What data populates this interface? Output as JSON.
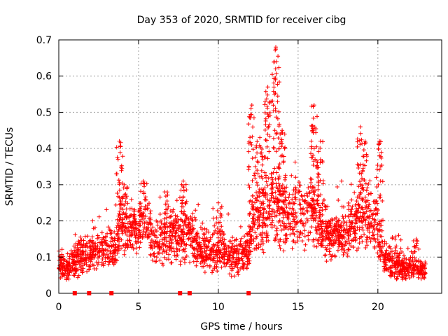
{
  "chart_data": {
    "type": "scatter",
    "title": "Day 353 of 2020, SRMTID for receiver cibg",
    "xlabel": "GPS time / hours",
    "ylabel": "SRMTID / TECUs",
    "xlim": [
      0,
      24
    ],
    "ylim": [
      0,
      0.7
    ],
    "xticks": [
      0,
      5,
      10,
      15,
      20
    ],
    "yticks": [
      0,
      0.1,
      0.2,
      0.3,
      0.4,
      0.5,
      0.6,
      0.7
    ],
    "grid": true,
    "marker": "plus",
    "color": "#ff0000",
    "gap_markers_x": [
      1.0,
      1.9,
      3.3,
      7.6,
      8.2,
      11.9
    ],
    "envelope": [
      {
        "x": 0.0,
        "base": 0.08,
        "spread": 0.03
      },
      {
        "x": 0.5,
        "base": 0.07,
        "spread": 0.03
      },
      {
        "x": 1.0,
        "base": 0.09,
        "spread": 0.04
      },
      {
        "x": 1.5,
        "base": 0.1,
        "spread": 0.04
      },
      {
        "x": 2.0,
        "base": 0.11,
        "spread": 0.04
      },
      {
        "x": 2.5,
        "base": 0.12,
        "spread": 0.04
      },
      {
        "x": 3.0,
        "base": 0.13,
        "spread": 0.04
      },
      {
        "x": 3.5,
        "base": 0.12,
        "spread": 0.04
      },
      {
        "x": 3.9,
        "base": 0.2,
        "spread": 0.08
      },
      {
        "x": 4.3,
        "base": 0.18,
        "spread": 0.06
      },
      {
        "x": 5.0,
        "base": 0.18,
        "spread": 0.05
      },
      {
        "x": 5.5,
        "base": 0.2,
        "spread": 0.06
      },
      {
        "x": 6.0,
        "base": 0.14,
        "spread": 0.05
      },
      {
        "x": 7.0,
        "base": 0.15,
        "spread": 0.06
      },
      {
        "x": 8.0,
        "base": 0.17,
        "spread": 0.07
      },
      {
        "x": 9.0,
        "base": 0.12,
        "spread": 0.05
      },
      {
        "x": 10.0,
        "base": 0.12,
        "spread": 0.05
      },
      {
        "x": 11.0,
        "base": 0.1,
        "spread": 0.04
      },
      {
        "x": 11.7,
        "base": 0.1,
        "spread": 0.04
      },
      {
        "x": 12.2,
        "base": 0.2,
        "spread": 0.08
      },
      {
        "x": 13.0,
        "base": 0.22,
        "spread": 0.08
      },
      {
        "x": 13.7,
        "base": 0.25,
        "spread": 0.1
      },
      {
        "x": 14.5,
        "base": 0.2,
        "spread": 0.07
      },
      {
        "x": 15.0,
        "base": 0.22,
        "spread": 0.07
      },
      {
        "x": 16.0,
        "base": 0.22,
        "spread": 0.08
      },
      {
        "x": 17.0,
        "base": 0.15,
        "spread": 0.05
      },
      {
        "x": 18.0,
        "base": 0.17,
        "spread": 0.06
      },
      {
        "x": 19.0,
        "base": 0.2,
        "spread": 0.07
      },
      {
        "x": 20.0,
        "base": 0.18,
        "spread": 0.06
      },
      {
        "x": 20.4,
        "base": 0.1,
        "spread": 0.04
      },
      {
        "x": 21.0,
        "base": 0.08,
        "spread": 0.03
      },
      {
        "x": 22.0,
        "base": 0.07,
        "spread": 0.03
      },
      {
        "x": 23.0,
        "base": 0.06,
        "spread": 0.02
      }
    ],
    "peaks": [
      {
        "x": 3.8,
        "value": 0.42
      },
      {
        "x": 4.1,
        "value": 0.3
      },
      {
        "x": 5.3,
        "value": 0.31
      },
      {
        "x": 6.8,
        "value": 0.28
      },
      {
        "x": 7.8,
        "value": 0.31
      },
      {
        "x": 10.0,
        "value": 0.25
      },
      {
        "x": 12.1,
        "value": 0.52
      },
      {
        "x": 12.6,
        "value": 0.43
      },
      {
        "x": 13.1,
        "value": 0.57
      },
      {
        "x": 13.6,
        "value": 0.68
      },
      {
        "x": 14.0,
        "value": 0.45
      },
      {
        "x": 16.0,
        "value": 0.52
      },
      {
        "x": 16.4,
        "value": 0.42
      },
      {
        "x": 18.9,
        "value": 0.46
      },
      {
        "x": 19.2,
        "value": 0.42
      },
      {
        "x": 20.1,
        "value": 0.42
      },
      {
        "x": 21.3,
        "value": 0.16
      },
      {
        "x": 22.4,
        "value": 0.15
      }
    ],
    "points_per_hour": 110,
    "x_end": 23.0
  }
}
